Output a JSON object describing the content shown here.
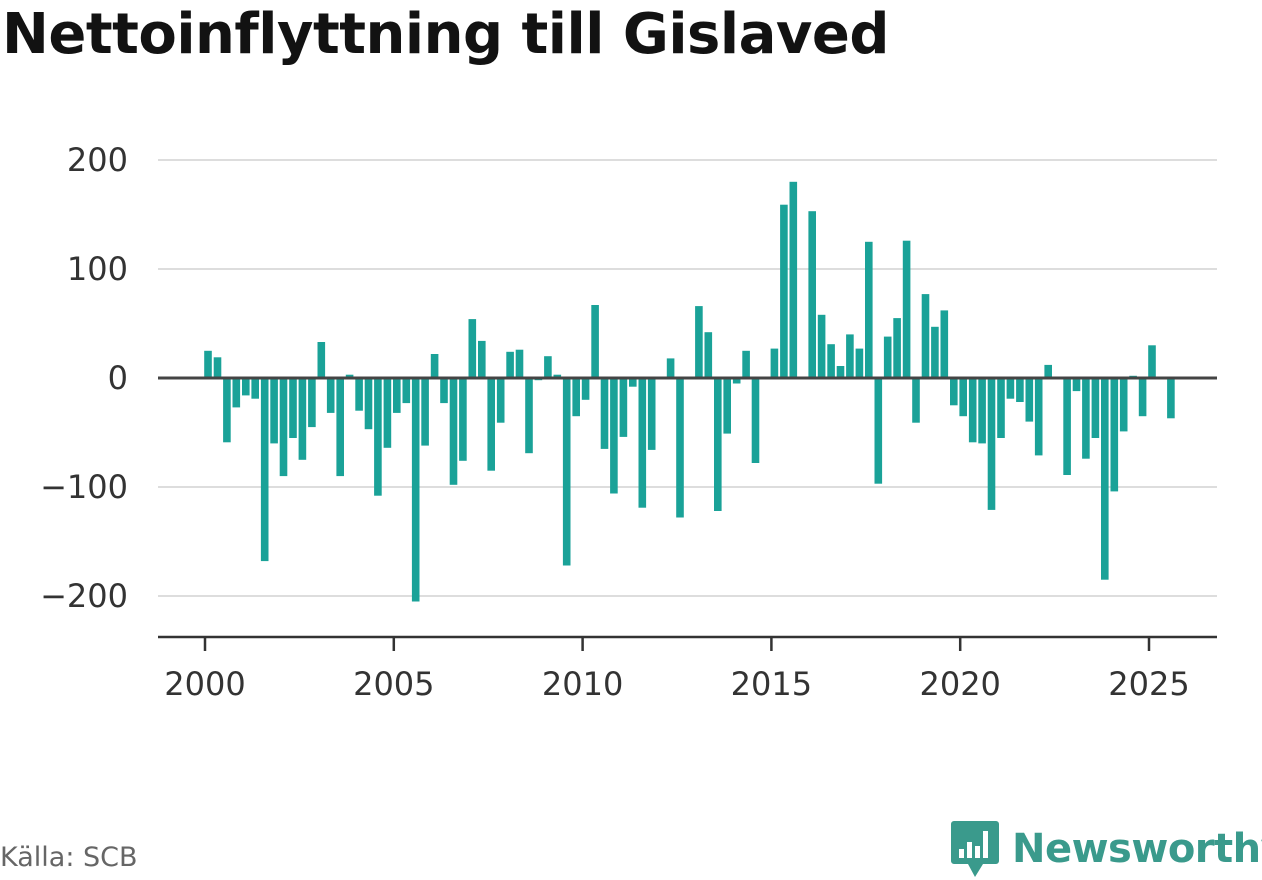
{
  "title": "Nettoinflyttning till Gislaved",
  "source": "Källa: SCB",
  "brand": {
    "name": "Newsworthy",
    "icon": "newsworthy-logo-icon",
    "color": "#3a9a8c"
  },
  "colors": {
    "bar": "#1aa298",
    "grid": "#dddddd",
    "zero_line": "#444444",
    "axis": "#333333"
  },
  "chart_data": {
    "type": "bar",
    "frequency": "quarterly",
    "start": [
      2000,
      1
    ],
    "values": [
      25,
      19,
      -59,
      -27,
      -16,
      -19,
      -168,
      -60,
      -90,
      -55,
      -75,
      -45,
      33,
      -32,
      -90,
      3,
      -30,
      -47,
      -108,
      -64,
      -32,
      -23,
      -205,
      -62,
      22,
      -23,
      -98,
      -76,
      54,
      34,
      -85,
      -41,
      24,
      26,
      -69,
      -2,
      20,
      3,
      -172,
      -35,
      -20,
      67,
      -65,
      -106,
      -54,
      -8,
      -119,
      -66,
      0,
      18,
      -128,
      0,
      66,
      42,
      -122,
      -51,
      -5,
      25,
      -78,
      0,
      27,
      159,
      180,
      0,
      153,
      58,
      31,
      11,
      40,
      27,
      125,
      -97,
      38,
      55,
      126,
      -41,
      77,
      47,
      62,
      -25,
      -35,
      -59,
      -60,
      -121,
      -55,
      -19,
      -22,
      -40,
      -71,
      12,
      0,
      -89,
      -12,
      -74,
      -55,
      -185,
      -104,
      -49,
      2,
      -35,
      30,
      0,
      -37
    ],
    "ylim": [
      -235,
      235
    ],
    "yticks": [
      200,
      100,
      0,
      -100,
      -200
    ],
    "ytick_labels": [
      "200",
      "100",
      "0",
      "−100",
      "−200"
    ],
    "xticks": [
      2000,
      2005,
      2010,
      2015,
      2020,
      2025
    ],
    "xtick_labels": [
      "2000",
      "2005",
      "2010",
      "2015",
      "2020",
      "2025"
    ],
    "xlabel": "",
    "ylabel": "",
    "grid": true,
    "legend": "none"
  }
}
